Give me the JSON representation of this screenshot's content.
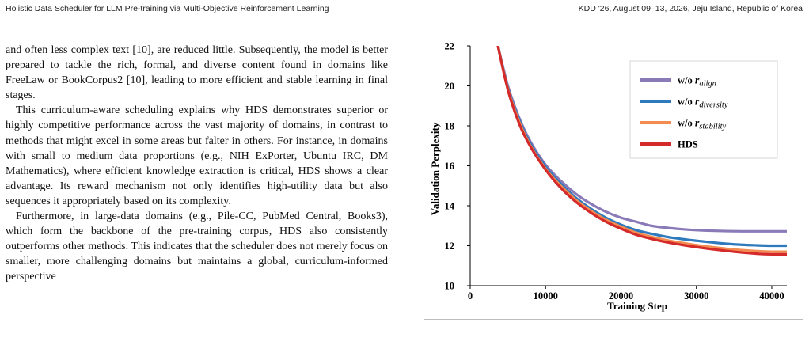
{
  "header": {
    "left": "Holistic Data Scheduler for LLM Pre-training via Multi-Objective Reinforcement Learning",
    "right": "KDD '26, August 09–13, 2026, Jeju Island, Republic of Korea"
  },
  "body": {
    "paragraphs": [
      "and often less complex text [10], are reduced little. Subsequently, the model is better prepared to tackle the rich, formal, and diverse content found in domains like FreeLaw or BookCorpus2 [10], leading to more efficient and stable learning in final stages.",
      "This curriculum-aware scheduling explains why HDS demonstrates superior or highly competitive performance across the vast majority of domains, in contrast to methods that might excel in some areas but falter in others. For instance, in domains with small to medium data proportions (e.g., NIH ExPorter, Ubuntu IRC, DM Mathematics), where efficient knowledge extraction is critical, HDS shows a clear advantage. Its reward mechanism not only identifies high-utility data but also sequences it appropriately based on its complexity.",
      "Furthermore, in large-data domains (e.g., Pile-CC, PubMed Central, Books3), which form the backbone of the pre-training corpus, HDS also consistently outperforms other methods. This indicates that the scheduler does not merely focus on smaller, more challenging domains but maintains a global, curriculum-informed perspective"
    ]
  },
  "chart_data": {
    "type": "line",
    "xlabel": "Training Step",
    "ylabel": "Validation Perplexity",
    "xlim": [
      0,
      42000
    ],
    "ylim": [
      10,
      22
    ],
    "xticks": [
      0,
      10000,
      20000,
      30000,
      40000
    ],
    "yticks": [
      10,
      12,
      14,
      16,
      18,
      20,
      22
    ],
    "grid": false,
    "legend_position": "top-right",
    "series": [
      {
        "name": "w/o r_align",
        "legend_base": "w/o ",
        "legend_symbol": "r",
        "legend_sub": "align",
        "color": "#8a7ab8",
        "x": [
          3500,
          5000,
          6500,
          8000,
          10000,
          12000,
          14000,
          16000,
          18000,
          20000,
          22000,
          24000,
          26000,
          28000,
          30000,
          32000,
          34000,
          36000,
          38000,
          40000,
          42000
        ],
        "y": [
          22.3,
          20.0,
          18.4,
          17.2,
          16.05,
          15.25,
          14.6,
          14.1,
          13.7,
          13.4,
          13.2,
          13.0,
          12.9,
          12.83,
          12.78,
          12.75,
          12.73,
          12.72,
          12.72,
          12.72,
          12.72
        ]
      },
      {
        "name": "w/o r_diversity",
        "legend_base": "w/o ",
        "legend_symbol": "r",
        "legend_sub": "diversity",
        "color": "#2f7abc",
        "x": [
          3500,
          5000,
          6500,
          8000,
          10000,
          12000,
          14000,
          16000,
          18000,
          20000,
          22000,
          24000,
          26000,
          28000,
          30000,
          32000,
          34000,
          36000,
          38000,
          40000,
          42000
        ],
        "y": [
          22.3,
          19.9,
          18.3,
          17.1,
          15.95,
          15.1,
          14.4,
          13.85,
          13.4,
          13.05,
          12.78,
          12.6,
          12.45,
          12.34,
          12.25,
          12.17,
          12.1,
          12.05,
          12.02,
          12.0,
          12.0
        ]
      },
      {
        "name": "w/o r_stability",
        "legend_base": "w/o ",
        "legend_symbol": "r",
        "legend_sub": "stability",
        "color": "#f28c50",
        "x": [
          3500,
          5000,
          6500,
          8000,
          10000,
          12000,
          14000,
          16000,
          18000,
          20000,
          22000,
          24000,
          26000,
          28000,
          30000,
          32000,
          34000,
          36000,
          38000,
          40000,
          42000
        ],
        "y": [
          22.3,
          19.85,
          18.2,
          17.0,
          15.85,
          15.0,
          14.3,
          13.75,
          13.3,
          12.95,
          12.65,
          12.45,
          12.28,
          12.15,
          12.03,
          11.93,
          11.85,
          11.78,
          11.73,
          11.7,
          11.7
        ]
      },
      {
        "name": "HDS",
        "legend_base": "HDS",
        "legend_symbol": "",
        "legend_sub": "",
        "color": "#d42a2a",
        "x": [
          3500,
          5000,
          6500,
          8000,
          10000,
          12000,
          14000,
          16000,
          18000,
          20000,
          22000,
          24000,
          26000,
          28000,
          30000,
          32000,
          34000,
          36000,
          38000,
          40000,
          42000
        ],
        "y": [
          22.3,
          19.8,
          18.1,
          16.95,
          15.8,
          14.9,
          14.2,
          13.65,
          13.2,
          12.85,
          12.55,
          12.35,
          12.18,
          12.05,
          11.93,
          11.83,
          11.74,
          11.66,
          11.6,
          11.57,
          11.57
        ]
      }
    ]
  }
}
